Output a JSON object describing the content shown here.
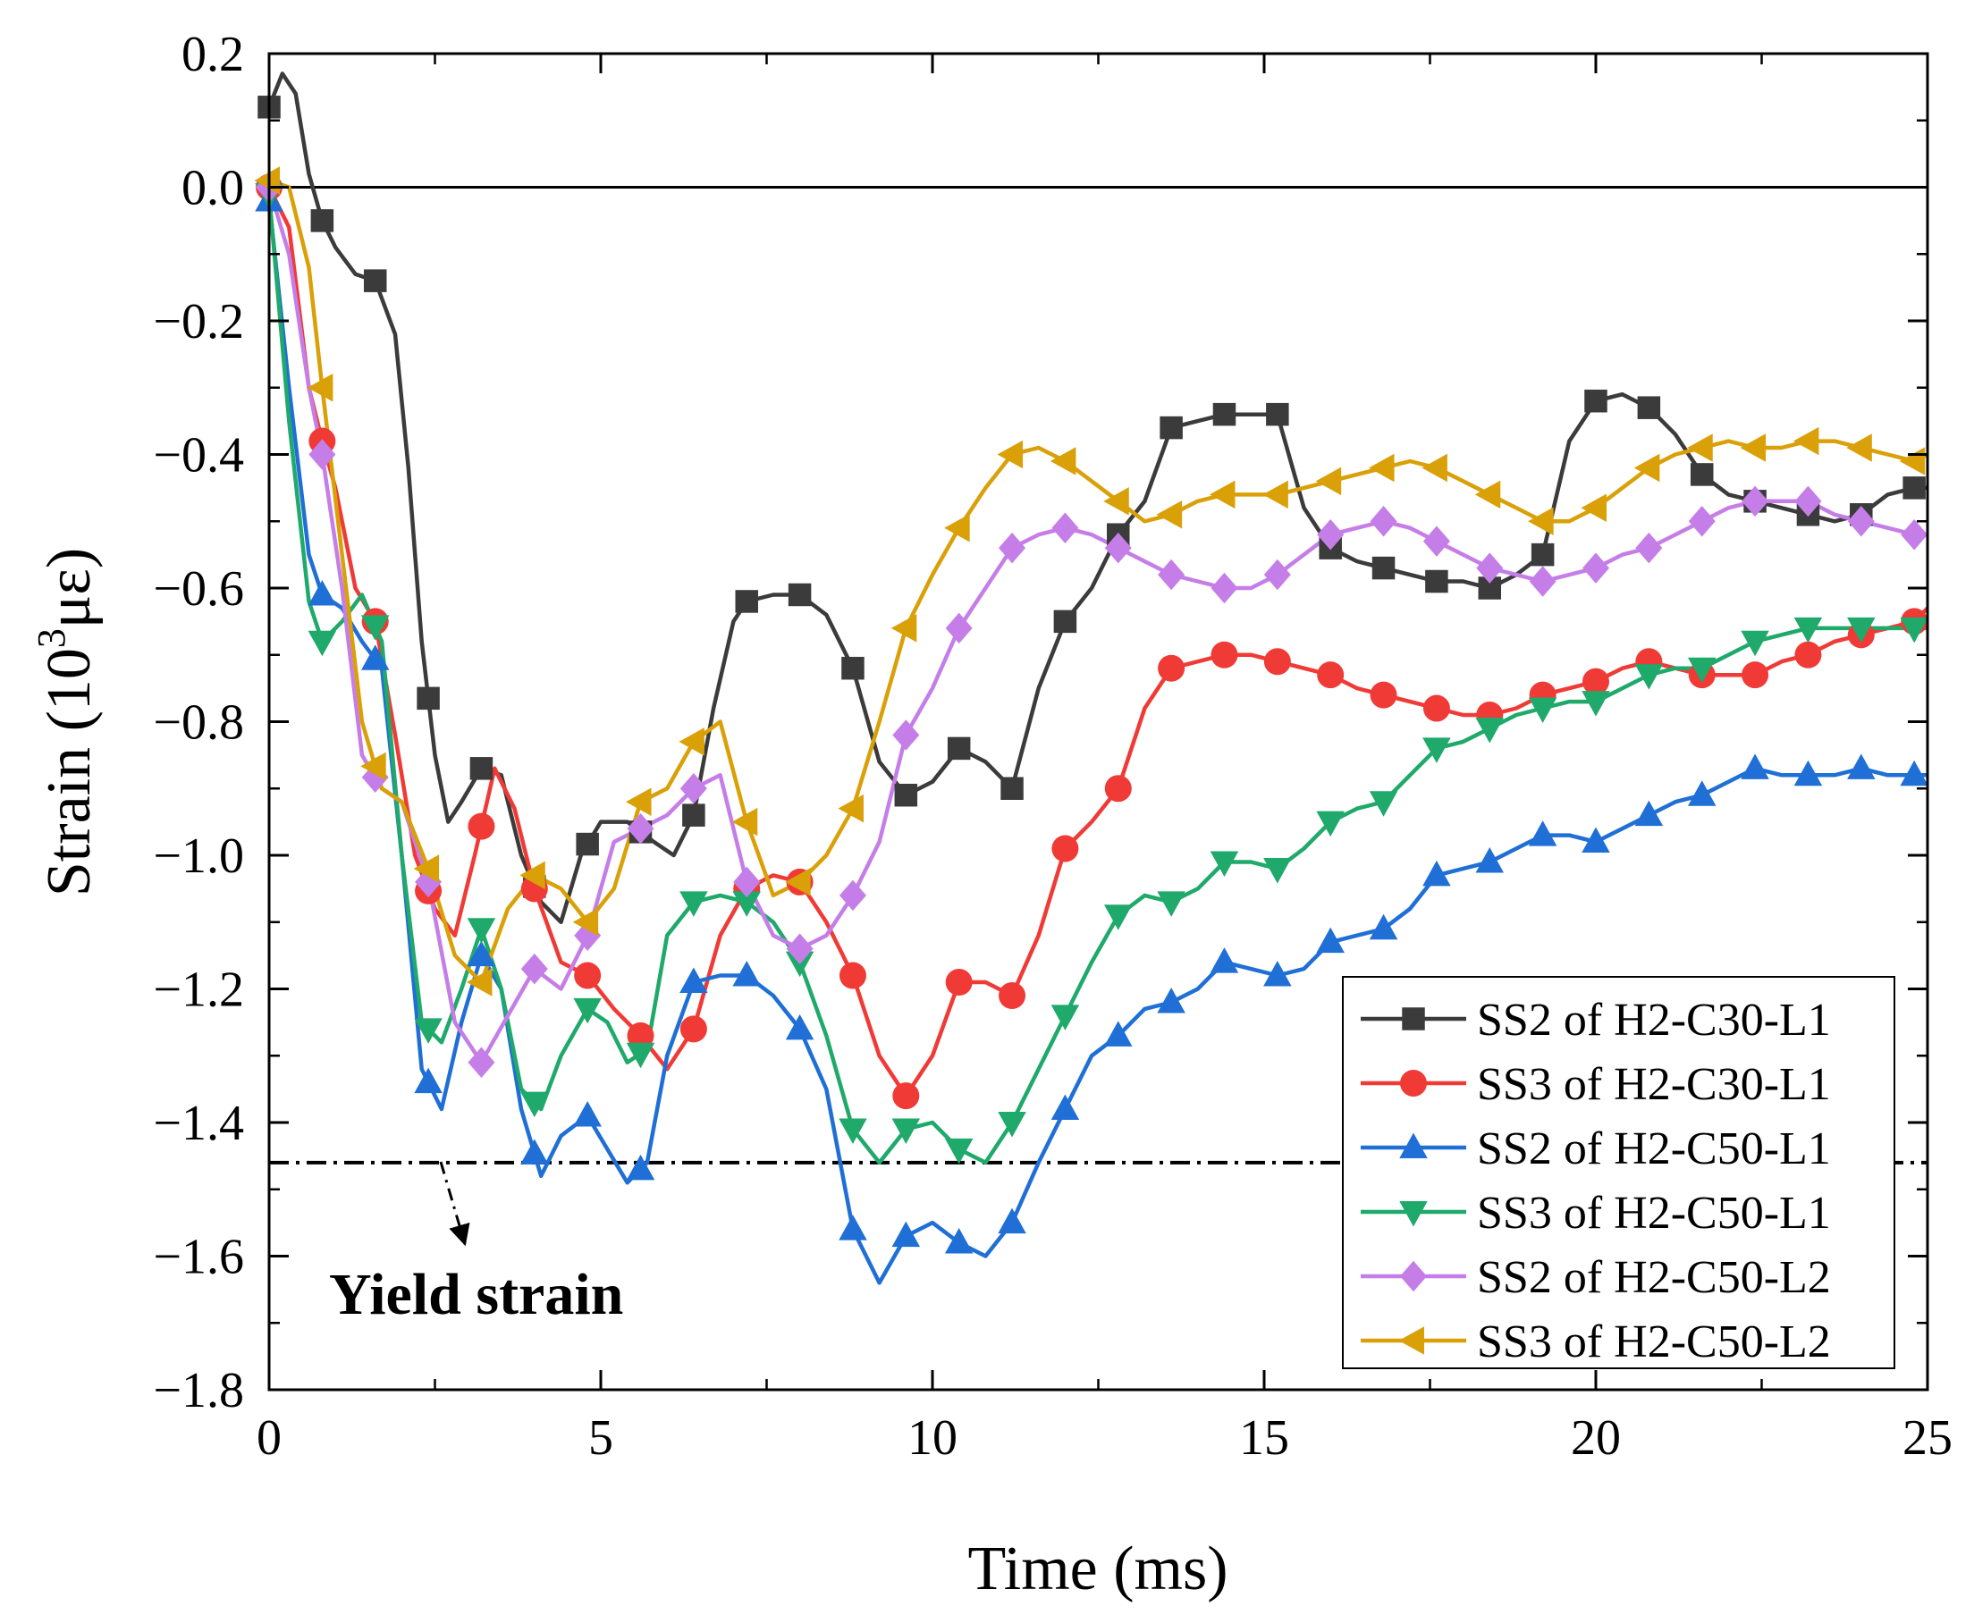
{
  "chart_data": {
    "type": "line",
    "title": "",
    "xlabel": "Time (ms)",
    "ylabel_prefix": "Strain (10",
    "ylabel_sup": "3",
    "ylabel_suffix": "με)",
    "xlim": [
      0,
      25
    ],
    "ylim": [
      -1.8,
      0.2
    ],
    "x_ticks": [
      0,
      5,
      10,
      15,
      20,
      25
    ],
    "x_tick_labels": [
      "0",
      "5",
      "10",
      "15",
      "20",
      "25"
    ],
    "y_ticks": [
      0.2,
      0.0,
      -0.2,
      -0.4,
      -0.6,
      -0.8,
      -1.0,
      -1.2,
      -1.4,
      -1.6,
      -1.8
    ],
    "y_tick_labels": [
      "0.2",
      "0.0",
      "−0.2",
      "−0.4",
      "−0.6",
      "−0.8",
      "−1.0",
      "−1.2",
      "−1.4",
      "−1.6",
      "−1.8"
    ],
    "grid": false,
    "legend_position": "bottom-right",
    "reference_lines": [
      {
        "name": "zero-line",
        "y": 0.0,
        "style": "solid",
        "color": "#000000"
      },
      {
        "name": "yield-strain-line",
        "y": -1.46,
        "style": "dashdot",
        "color": "#000000"
      }
    ],
    "annotation": {
      "text": "Yield strain",
      "points_to_x": 2.6,
      "points_to_y": -1.46
    },
    "series": [
      {
        "name": "SS2 of H2-C30-L1",
        "color": "#3b3b3b",
        "marker": "square",
        "x": [
          0,
          0.2,
          0.4,
          0.6,
          0.8,
          1.0,
          1.3,
          1.6,
          1.9,
          2.1,
          2.3,
          2.5,
          2.7,
          2.9,
          3.2,
          3.5,
          3.8,
          4.1,
          4.4,
          4.7,
          5.0,
          5.4,
          5.8,
          6.1,
          6.4,
          6.7,
          7.0,
          7.2,
          7.6,
          8.0,
          8.4,
          8.8,
          9.2,
          9.6,
          10.0,
          10.4,
          10.8,
          11.2,
          11.6,
          12.0,
          12.4,
          12.8,
          13.2,
          13.6,
          14.0,
          14.4,
          14.8,
          15.2,
          15.6,
          16.0,
          16.4,
          16.8,
          17.2,
          17.6,
          18.0,
          18.4,
          18.8,
          19.2,
          19.6,
          20.0,
          20.4,
          20.8,
          21.2,
          21.6,
          22.0,
          22.4,
          22.8,
          23.2,
          23.6,
          24.0,
          24.4,
          24.8,
          25.0
        ],
        "y": [
          0.12,
          0.17,
          0.14,
          0.02,
          -0.05,
          -0.09,
          -0.13,
          -0.14,
          -0.22,
          -0.42,
          -0.68,
          -0.85,
          -0.95,
          -0.92,
          -0.87,
          -0.88,
          -1.0,
          -1.07,
          -1.1,
          -1.0,
          -0.95,
          -0.95,
          -0.98,
          -1.0,
          -0.94,
          -0.78,
          -0.65,
          -0.62,
          -0.61,
          -0.61,
          -0.64,
          -0.72,
          -0.86,
          -0.91,
          -0.89,
          -0.84,
          -0.86,
          -0.9,
          -0.75,
          -0.65,
          -0.6,
          -0.52,
          -0.47,
          -0.36,
          -0.35,
          -0.34,
          -0.34,
          -0.34,
          -0.48,
          -0.54,
          -0.56,
          -0.57,
          -0.58,
          -0.59,
          -0.59,
          -0.6,
          -0.58,
          -0.55,
          -0.38,
          -0.32,
          -0.31,
          -0.33,
          -0.37,
          -0.43,
          -0.46,
          -0.47,
          -0.48,
          -0.49,
          -0.5,
          -0.49,
          -0.46,
          -0.45,
          -0.45
        ],
        "marker_x": [
          0,
          0.8,
          1.6,
          2.4,
          3.2,
          4.0,
          4.8,
          5.6,
          6.4,
          7.2,
          8.0,
          8.8,
          9.6,
          10.4,
          11.2,
          12.0,
          12.8,
          13.6,
          14.4,
          15.2,
          16.0,
          16.8,
          17.6,
          18.4,
          19.2,
          20.0,
          20.8,
          21.6,
          22.4,
          23.2,
          24.0,
          24.8
        ]
      },
      {
        "name": "SS3 of H2-C30-L1",
        "color": "#f03a36",
        "marker": "circle",
        "x": [
          0,
          0.3,
          0.6,
          0.8,
          1.0,
          1.3,
          1.6,
          1.9,
          2.2,
          2.5,
          2.8,
          3.1,
          3.4,
          3.7,
          4.0,
          4.4,
          4.8,
          5.2,
          5.6,
          6.0,
          6.4,
          6.8,
          7.2,
          7.6,
          8.0,
          8.4,
          8.8,
          9.2,
          9.6,
          10.0,
          10.4,
          10.8,
          11.2,
          11.6,
          12.0,
          12.4,
          12.8,
          13.2,
          13.6,
          14.0,
          14.4,
          14.8,
          15.2,
          15.6,
          16.0,
          16.4,
          16.8,
          17.2,
          17.6,
          18.0,
          18.4,
          18.8,
          19.2,
          19.6,
          20.0,
          20.4,
          20.8,
          21.2,
          21.6,
          22.0,
          22.4,
          22.8,
          23.2,
          23.6,
          24.0,
          24.4,
          24.8,
          25.0
        ],
        "y": [
          0.0,
          -0.06,
          -0.3,
          -0.38,
          -0.45,
          -0.6,
          -0.65,
          -0.82,
          -1.0,
          -1.08,
          -1.12,
          -1.0,
          -0.87,
          -0.93,
          -1.05,
          -1.16,
          -1.18,
          -1.23,
          -1.27,
          -1.32,
          -1.26,
          -1.12,
          -1.05,
          -1.03,
          -1.04,
          -1.1,
          -1.18,
          -1.3,
          -1.36,
          -1.3,
          -1.19,
          -1.19,
          -1.21,
          -1.12,
          -0.99,
          -0.95,
          -0.9,
          -0.78,
          -0.72,
          -0.71,
          -0.7,
          -0.7,
          -0.71,
          -0.72,
          -0.73,
          -0.75,
          -0.76,
          -0.77,
          -0.78,
          -0.79,
          -0.79,
          -0.78,
          -0.76,
          -0.75,
          -0.74,
          -0.72,
          -0.71,
          -0.72,
          -0.73,
          -0.73,
          -0.73,
          -0.71,
          -0.7,
          -0.68,
          -0.67,
          -0.66,
          -0.65,
          -0.63
        ],
        "marker_x": [
          0,
          0.8,
          1.6,
          2.4,
          3.2,
          4.0,
          4.8,
          5.6,
          6.4,
          7.2,
          8.0,
          8.8,
          9.6,
          10.4,
          11.2,
          12.0,
          12.8,
          13.6,
          14.4,
          15.2,
          16.0,
          16.8,
          17.6,
          18.4,
          19.2,
          20.0,
          20.8,
          21.6,
          22.4,
          23.2,
          24.0,
          24.8
        ]
      },
      {
        "name": "SS2 of H2-C50-L1",
        "color": "#1f6fd6",
        "marker": "triangle-up",
        "x": [
          0,
          0.3,
          0.6,
          0.8,
          1.1,
          1.4,
          1.7,
          2.0,
          2.3,
          2.6,
          2.9,
          3.2,
          3.5,
          3.8,
          4.1,
          4.4,
          4.8,
          5.1,
          5.4,
          5.7,
          6.0,
          6.4,
          6.8,
          7.2,
          7.6,
          8.0,
          8.4,
          8.8,
          9.2,
          9.6,
          10.0,
          10.4,
          10.8,
          11.2,
          11.6,
          12.0,
          12.4,
          12.8,
          13.2,
          13.6,
          14.0,
          14.4,
          14.8,
          15.2,
          15.6,
          16.0,
          16.4,
          16.8,
          17.2,
          17.6,
          18.0,
          18.4,
          18.8,
          19.2,
          19.6,
          20.0,
          20.4,
          20.8,
          21.2,
          21.6,
          22.0,
          22.4,
          22.8,
          23.2,
          23.6,
          24.0,
          24.4,
          24.8,
          25.0
        ],
        "y": [
          -0.02,
          -0.3,
          -0.55,
          -0.61,
          -0.63,
          -0.68,
          -0.72,
          -1.0,
          -1.32,
          -1.38,
          -1.25,
          -1.15,
          -1.2,
          -1.38,
          -1.48,
          -1.42,
          -1.39,
          -1.44,
          -1.49,
          -1.46,
          -1.3,
          -1.19,
          -1.18,
          -1.18,
          -1.21,
          -1.26,
          -1.35,
          -1.56,
          -1.64,
          -1.57,
          -1.55,
          -1.58,
          -1.6,
          -1.55,
          -1.46,
          -1.38,
          -1.3,
          -1.27,
          -1.23,
          -1.22,
          -1.2,
          -1.16,
          -1.17,
          -1.18,
          -1.17,
          -1.13,
          -1.12,
          -1.11,
          -1.08,
          -1.03,
          -1.02,
          -1.01,
          -0.99,
          -0.97,
          -0.97,
          -0.98,
          -0.96,
          -0.94,
          -0.92,
          -0.91,
          -0.89,
          -0.87,
          -0.88,
          -0.88,
          -0.88,
          -0.87,
          -0.88,
          -0.88,
          -0.88
        ],
        "marker_x": [
          0,
          0.8,
          1.6,
          2.4,
          3.2,
          4.0,
          4.8,
          5.6,
          6.4,
          7.2,
          8.0,
          8.8,
          9.6,
          10.4,
          11.2,
          12.0,
          12.8,
          13.6,
          14.4,
          15.2,
          16.0,
          16.8,
          17.6,
          18.4,
          19.2,
          20.0,
          20.8,
          21.6,
          22.4,
          23.2,
          24.0,
          24.8
        ]
      },
      {
        "name": "SS3 of H2-C50-L1",
        "color": "#1fa96a",
        "marker": "triangle-down",
        "x": [
          0,
          0.3,
          0.6,
          0.8,
          1.1,
          1.4,
          1.7,
          2.0,
          2.3,
          2.6,
          2.9,
          3.2,
          3.5,
          3.8,
          4.1,
          4.4,
          4.8,
          5.1,
          5.4,
          5.7,
          6.0,
          6.4,
          6.8,
          7.2,
          7.6,
          8.0,
          8.4,
          8.8,
          9.2,
          9.6,
          10.0,
          10.4,
          10.8,
          11.2,
          11.6,
          12.0,
          12.4,
          12.8,
          13.2,
          13.6,
          14.0,
          14.4,
          14.8,
          15.2,
          15.6,
          16.0,
          16.4,
          16.8,
          17.2,
          17.6,
          18.0,
          18.4,
          18.8,
          19.2,
          19.6,
          20.0,
          20.4,
          20.8,
          21.2,
          21.6,
          22.0,
          22.4,
          22.8,
          23.2,
          23.6,
          24.0,
          24.4,
          24.8,
          25.0
        ],
        "y": [
          -0.01,
          -0.35,
          -0.62,
          -0.68,
          -0.65,
          -0.61,
          -0.68,
          -1.0,
          -1.25,
          -1.28,
          -1.2,
          -1.11,
          -1.2,
          -1.35,
          -1.38,
          -1.3,
          -1.23,
          -1.25,
          -1.31,
          -1.29,
          -1.12,
          -1.07,
          -1.06,
          -1.07,
          -1.1,
          -1.16,
          -1.27,
          -1.41,
          -1.46,
          -1.41,
          -1.4,
          -1.44,
          -1.46,
          -1.4,
          -1.32,
          -1.24,
          -1.16,
          -1.09,
          -1.06,
          -1.07,
          -1.05,
          -1.01,
          -1.01,
          -1.02,
          -0.99,
          -0.95,
          -0.93,
          -0.92,
          -0.88,
          -0.84,
          -0.83,
          -0.81,
          -0.79,
          -0.78,
          -0.77,
          -0.77,
          -0.75,
          -0.73,
          -0.72,
          -0.72,
          -0.7,
          -0.68,
          -0.67,
          -0.66,
          -0.66,
          -0.66,
          -0.66,
          -0.66,
          -0.66
        ],
        "marker_x": [
          0,
          0.8,
          1.6,
          2.4,
          3.2,
          4.0,
          4.8,
          5.6,
          6.4,
          7.2,
          8.0,
          8.8,
          9.6,
          10.4,
          11.2,
          12.0,
          12.8,
          13.6,
          14.4,
          15.2,
          16.0,
          16.8,
          17.6,
          18.4,
          19.2,
          20.0,
          20.8,
          21.6,
          22.4,
          23.2,
          24.0,
          24.8
        ]
      },
      {
        "name": "SS2 of H2-C50-L2",
        "color": "#c57ee8",
        "marker": "diamond",
        "x": [
          0,
          0.3,
          0.6,
          0.8,
          1.1,
          1.4,
          1.7,
          2.0,
          2.4,
          2.8,
          3.2,
          3.6,
          4.0,
          4.4,
          4.8,
          5.2,
          5.6,
          6.0,
          6.4,
          6.8,
          7.2,
          7.6,
          8.0,
          8.4,
          8.8,
          9.2,
          9.6,
          10.0,
          10.4,
          10.8,
          11.2,
          11.6,
          12.0,
          12.4,
          12.8,
          13.2,
          13.6,
          14.0,
          14.4,
          14.8,
          15.2,
          15.6,
          16.0,
          16.4,
          16.8,
          17.2,
          17.6,
          18.0,
          18.4,
          18.8,
          19.2,
          19.6,
          20.0,
          20.4,
          20.8,
          21.2,
          21.6,
          22.0,
          22.4,
          22.8,
          23.2,
          23.6,
          24.0,
          24.4,
          24.8,
          25.0
        ],
        "y": [
          0.0,
          -0.1,
          -0.3,
          -0.4,
          -0.6,
          -0.85,
          -0.9,
          -0.92,
          -1.04,
          -1.25,
          -1.31,
          -1.24,
          -1.17,
          -1.2,
          -1.12,
          -0.98,
          -0.96,
          -0.94,
          -0.9,
          -0.88,
          -1.04,
          -1.12,
          -1.14,
          -1.12,
          -1.06,
          -0.98,
          -0.82,
          -0.75,
          -0.66,
          -0.6,
          -0.54,
          -0.52,
          -0.51,
          -0.52,
          -0.54,
          -0.56,
          -0.58,
          -0.59,
          -0.6,
          -0.6,
          -0.58,
          -0.55,
          -0.52,
          -0.51,
          -0.5,
          -0.51,
          -0.53,
          -0.55,
          -0.57,
          -0.58,
          -0.59,
          -0.58,
          -0.57,
          -0.55,
          -0.54,
          -0.52,
          -0.5,
          -0.48,
          -0.47,
          -0.47,
          -0.47,
          -0.49,
          -0.5,
          -0.51,
          -0.52,
          -0.52
        ],
        "marker_x": [
          0,
          0.8,
          1.6,
          2.4,
          3.2,
          4.0,
          4.8,
          5.6,
          6.4,
          7.2,
          8.0,
          8.8,
          9.6,
          10.4,
          11.2,
          12.0,
          12.8,
          13.6,
          14.4,
          15.2,
          16.0,
          16.8,
          17.6,
          18.4,
          19.2,
          20.0,
          20.8,
          21.6,
          22.4,
          23.2,
          24.0,
          24.8
        ]
      },
      {
        "name": "SS3 of H2-C50-L2",
        "color": "#d9a008",
        "marker": "triangle-left",
        "x": [
          0,
          0.3,
          0.6,
          0.8,
          1.1,
          1.4,
          1.7,
          2.0,
          2.4,
          2.8,
          3.2,
          3.6,
          4.0,
          4.4,
          4.8,
          5.2,
          5.6,
          6.0,
          6.4,
          6.8,
          7.2,
          7.6,
          8.0,
          8.4,
          8.8,
          9.2,
          9.6,
          10.0,
          10.4,
          10.8,
          11.2,
          11.6,
          12.0,
          12.4,
          12.8,
          13.2,
          13.6,
          14.0,
          14.4,
          14.8,
          15.2,
          15.6,
          16.0,
          16.4,
          16.8,
          17.2,
          17.6,
          18.0,
          18.4,
          18.8,
          19.2,
          19.6,
          20.0,
          20.4,
          20.8,
          21.2,
          21.6,
          22.0,
          22.4,
          22.8,
          23.2,
          23.6,
          24.0,
          24.4,
          24.8,
          25.0
        ],
        "y": [
          0.01,
          0.0,
          -0.12,
          -0.3,
          -0.55,
          -0.8,
          -0.9,
          -0.92,
          -1.02,
          -1.15,
          -1.19,
          -1.08,
          -1.03,
          -1.05,
          -1.1,
          -1.05,
          -0.92,
          -0.9,
          -0.83,
          -0.8,
          -0.95,
          -1.06,
          -1.04,
          -1.0,
          -0.93,
          -0.8,
          -0.66,
          -0.58,
          -0.51,
          -0.45,
          -0.4,
          -0.39,
          -0.41,
          -0.44,
          -0.47,
          -0.5,
          -0.49,
          -0.47,
          -0.46,
          -0.46,
          -0.46,
          -0.45,
          -0.44,
          -0.43,
          -0.42,
          -0.41,
          -0.42,
          -0.44,
          -0.46,
          -0.48,
          -0.5,
          -0.5,
          -0.48,
          -0.45,
          -0.42,
          -0.4,
          -0.39,
          -0.38,
          -0.39,
          -0.39,
          -0.38,
          -0.38,
          -0.39,
          -0.4,
          -0.41,
          -0.4
        ],
        "marker_x": [
          0,
          0.8,
          1.6,
          2.4,
          3.2,
          4.0,
          4.8,
          5.6,
          6.4,
          7.2,
          8.0,
          8.8,
          9.6,
          10.4,
          11.2,
          12.0,
          12.8,
          13.6,
          14.4,
          15.2,
          16.0,
          16.8,
          17.6,
          18.4,
          19.2,
          20.0,
          20.8,
          21.6,
          22.4,
          23.2,
          24.0,
          24.8
        ]
      }
    ]
  }
}
